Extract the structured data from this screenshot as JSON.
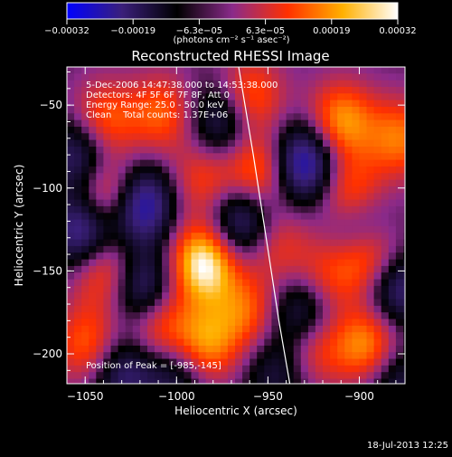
{
  "chart_data": {
    "type": "heatmap",
    "title": "Reconstructed RHESSI Image",
    "xlabel": "Heliocentric X (arcsec)",
    "ylabel": "Heliocentric Y (arcsec)",
    "xlim": [
      -1060,
      -875
    ],
    "ylim": [
      -218,
      -27
    ],
    "x_ticks": [
      {
        "value": -1050,
        "label": "−1050"
      },
      {
        "value": -1000,
        "label": "−1000"
      },
      {
        "value": -950,
        "label": "−950"
      },
      {
        "value": -900,
        "label": "−900"
      }
    ],
    "y_ticks": [
      {
        "value": -50,
        "label": "−50"
      },
      {
        "value": -100,
        "label": "−100"
      },
      {
        "value": -150,
        "label": "−150"
      },
      {
        "value": -200,
        "label": "−200"
      }
    ],
    "colorbar": {
      "range": [
        -0.00032,
        0.00032
      ],
      "tick_labels": [
        "−0.00032",
        "−0.00019",
        "−6.3e−05",
        "6.3e−05",
        "0.00019",
        "0.00032"
      ],
      "unit_label": "(photons cm⁻² s⁻¹ asec⁻²)",
      "colors": [
        "#0000ff",
        "#3a1f7a",
        "#000000",
        "#8a2a8a",
        "#ff3000",
        "#ffb000",
        "#ffffff"
      ]
    },
    "annotations": [
      "5-Dec-2006 14:47:38.000 to 14:53:38.000",
      "Detectors: 4F 5F 6F 7F 8F, Att 0",
      "Energy Range: 25.0 - 50.0 keV",
      "Clean    Total counts: 1.37E+06"
    ],
    "peak_label": "Position of Peak = [-985,-145]",
    "peak": {
      "x": -985,
      "y": -145
    },
    "limb_curve": [
      [
        -966,
        -27
      ],
      [
        -958,
        -80
      ],
      [
        -951,
        -130
      ],
      [
        -944,
        -180
      ],
      [
        -938,
        -218
      ]
    ],
    "blobs": [
      {
        "x": -985,
        "y": -145,
        "v": 0.00032
      },
      {
        "x": -985,
        "y": -195,
        "v": 0.00022
      },
      {
        "x": -985,
        "y": -95,
        "v": 0.00014
      },
      {
        "x": -1038,
        "y": -105,
        "v": 0.00025
      },
      {
        "x": -1040,
        "y": -60,
        "v": 0.00018
      },
      {
        "x": -1038,
        "y": -150,
        "v": 0.0002
      },
      {
        "x": -1048,
        "y": -195,
        "v": 0.00018
      },
      {
        "x": -1008,
        "y": -55,
        "v": 0.00016
      },
      {
        "x": -1010,
        "y": -185,
        "v": 0.00018
      },
      {
        "x": -960,
        "y": -45,
        "v": 0.00018
      },
      {
        "x": -955,
        "y": -90,
        "v": 0.0002
      },
      {
        "x": -945,
        "y": -135,
        "v": 0.00012
      },
      {
        "x": -962,
        "y": -175,
        "v": 0.00016
      },
      {
        "x": -910,
        "y": -60,
        "v": 0.00022
      },
      {
        "x": -905,
        "y": -105,
        "v": 0.0002
      },
      {
        "x": -918,
        "y": -155,
        "v": 0.00014
      },
      {
        "x": -895,
        "y": -140,
        "v": 0.00026
      },
      {
        "x": -895,
        "y": -195,
        "v": 0.00022
      },
      {
        "x": -925,
        "y": -195,
        "v": 0.00016
      },
      {
        "x": -878,
        "y": -70,
        "v": 0.00018
      },
      {
        "x": -1020,
        "y": -110,
        "v": -0.00028
      },
      {
        "x": -1020,
        "y": -160,
        "v": -0.00022
      },
      {
        "x": -965,
        "y": -120,
        "v": -0.00022
      },
      {
        "x": -930,
        "y": -85,
        "v": -0.00028
      },
      {
        "x": -930,
        "y": -175,
        "v": -0.0002
      },
      {
        "x": -1050,
        "y": -125,
        "v": -0.00026
      },
      {
        "x": -1052,
        "y": -80,
        "v": -0.0002
      },
      {
        "x": -975,
        "y": -60,
        "v": -0.00018
      },
      {
        "x": -900,
        "y": -125,
        "v": -0.00022
      },
      {
        "x": -880,
        "y": -160,
        "v": -0.0002
      },
      {
        "x": -1000,
        "y": -210,
        "v": -0.00016
      },
      {
        "x": -1030,
        "y": -210,
        "v": -0.00018
      },
      {
        "x": -945,
        "y": -210,
        "v": -0.00012
      },
      {
        "x": -880,
        "y": -215,
        "v": -0.00014
      }
    ]
  },
  "timestamp": "18-Jul-2013 12:25"
}
